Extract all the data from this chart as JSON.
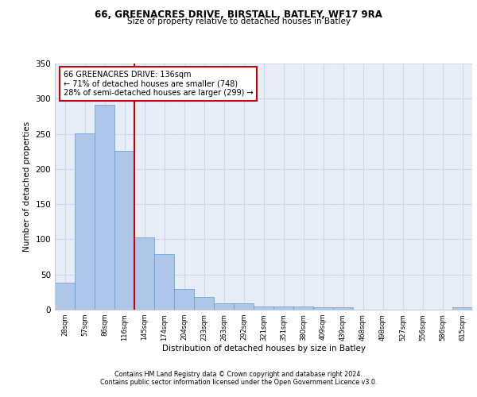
{
  "title1": "66, GREENACRES DRIVE, BIRSTALL, BATLEY, WF17 9RA",
  "title2": "Size of property relative to detached houses in Batley",
  "xlabel": "Distribution of detached houses by size in Batley",
  "ylabel": "Number of detached properties",
  "footer1": "Contains HM Land Registry data © Crown copyright and database right 2024.",
  "footer2": "Contains public sector information licensed under the Open Government Licence v3.0.",
  "annotation_line1": "66 GREENACRES DRIVE: 136sqm",
  "annotation_line2": "← 71% of detached houses are smaller (748)",
  "annotation_line3": "28% of semi-detached houses are larger (299) →",
  "bar_labels": [
    "28sqm",
    "57sqm",
    "86sqm",
    "116sqm",
    "145sqm",
    "174sqm",
    "204sqm",
    "233sqm",
    "263sqm",
    "292sqm",
    "321sqm",
    "351sqm",
    "380sqm",
    "409sqm",
    "439sqm",
    "468sqm",
    "498sqm",
    "527sqm",
    "556sqm",
    "586sqm",
    "615sqm"
  ],
  "bar_values": [
    38,
    251,
    291,
    226,
    103,
    79,
    29,
    18,
    9,
    9,
    5,
    5,
    4,
    3,
    3,
    0,
    0,
    0,
    0,
    0,
    3
  ],
  "bar_color": "#aec6e8",
  "bar_edge_color": "#5b9bd5",
  "vline_color": "#cc0000",
  "vline_x": 3.5,
  "grid_color": "#d0d8e8",
  "bg_color": "#e8eef8",
  "annotation_box_color": "#cc0000",
  "ylim": [
    0,
    350
  ],
  "yticks": [
    0,
    50,
    100,
    150,
    200,
    250,
    300,
    350
  ],
  "fig_width": 6.0,
  "fig_height": 5.0,
  "fig_dpi": 100
}
